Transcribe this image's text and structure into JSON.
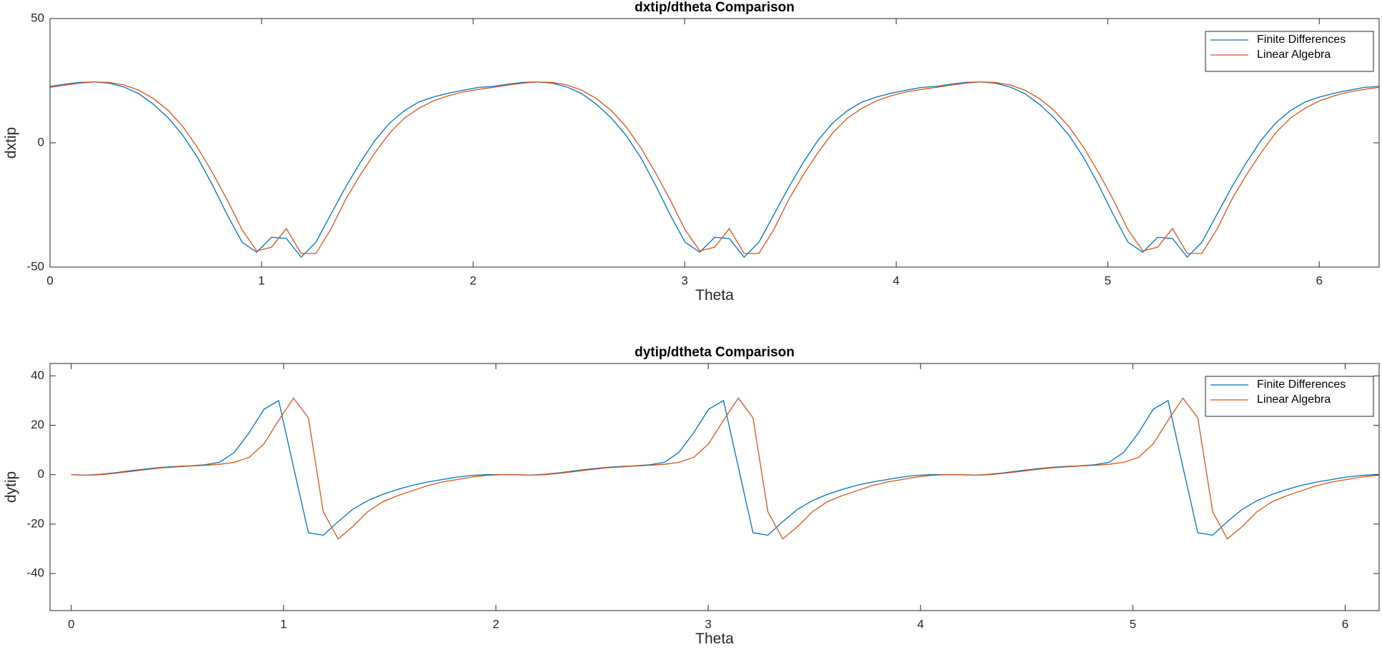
{
  "chart_data": [
    {
      "type": "line",
      "title": "dxtip/dtheta Comparison",
      "xlabel": "Theta",
      "ylabel": "dxtip",
      "x": [
        0,
        0.07,
        0.14,
        0.209,
        0.279,
        0.349,
        0.419,
        0.489,
        0.559,
        0.628,
        0.698,
        0.768,
        0.838,
        0.908,
        0.977,
        1.047,
        1.117,
        1.187,
        1.257,
        1.326,
        1.396,
        1.466,
        1.536,
        1.606,
        1.676,
        1.745,
        1.815,
        1.885,
        1.955,
        2.025,
        2.094,
        2.164,
        2.234,
        2.304,
        2.374,
        2.443,
        2.513,
        2.583,
        2.653,
        2.723,
        2.793,
        2.862,
        2.932,
        3.002,
        3.072,
        3.142,
        3.211,
        3.281,
        3.351,
        3.421,
        3.491,
        3.56,
        3.63,
        3.7,
        3.77,
        3.84,
        3.91,
        3.979,
        4.049,
        4.119,
        4.189,
        4.259,
        4.328,
        4.398,
        4.468,
        4.538,
        4.608,
        4.677,
        4.747,
        4.817,
        4.887,
        4.957,
        5.027,
        5.096,
        5.166,
        5.236,
        5.306,
        5.376,
        5.445,
        5.515,
        5.585,
        5.655,
        5.725,
        5.794,
        5.864,
        5.934,
        6.004,
        6.074,
        6.143,
        6.213,
        6.283
      ],
      "series": [
        {
          "name": "Finite Differences",
          "color": "#0072BD",
          "values": [
            22.7,
            23.6,
            24.3,
            24.5,
            24.0,
            22.5,
            19.8,
            15.5,
            10,
            3,
            -6,
            -17,
            -29,
            -40,
            -44,
            -38,
            -38.5,
            -46,
            -40,
            -29,
            -18,
            -8,
            1,
            8,
            13,
            16.5,
            18.5,
            20,
            21.2,
            22.3,
            22.7,
            23.6,
            24.3,
            24.5,
            24.0,
            22.5,
            19.8,
            15.5,
            10,
            3,
            -6,
            -17,
            -29,
            -40,
            -44,
            -38,
            -38.5,
            -46,
            -40,
            -29,
            -18,
            -8,
            1,
            8,
            13,
            16.5,
            18.5,
            20,
            21.2,
            22.3,
            22.7,
            23.6,
            24.3,
            24.5,
            24.0,
            22.5,
            19.8,
            15.5,
            10,
            3,
            -6,
            -17,
            -29,
            -40,
            -44,
            -38,
            -38.5,
            -46,
            -40,
            -29,
            -18,
            -8,
            1,
            8,
            13,
            16.5,
            18.5,
            20,
            21.2,
            22.3,
            22.7
          ]
        },
        {
          "name": "Linear Algebra",
          "color": "#D95319",
          "values": [
            22.3,
            23.2,
            24.0,
            24.5,
            24.3,
            23.3,
            21.2,
            17.8,
            13,
            6.5,
            -2,
            -12,
            -23,
            -35,
            -43.5,
            -42,
            -34.5,
            -44.5,
            -44.5,
            -35,
            -23,
            -13,
            -4,
            4,
            10,
            14,
            17,
            19,
            20.5,
            21.5,
            22.3,
            23.2,
            24.0,
            24.5,
            24.3,
            23.3,
            21.2,
            17.8,
            13,
            6.5,
            -2,
            -12,
            -23,
            -35,
            -43.5,
            -42,
            -34.5,
            -44.5,
            -44.5,
            -35,
            -23,
            -13,
            -4,
            4,
            10,
            14,
            17,
            19,
            20.5,
            21.5,
            22.3,
            23.2,
            24.0,
            24.5,
            24.3,
            23.3,
            21.2,
            17.8,
            13,
            6.5,
            -2,
            -12,
            -23,
            -35,
            -43.5,
            -42,
            -34.5,
            -44.5,
            -44.5,
            -35,
            -23,
            -13,
            -4,
            4,
            10,
            14,
            17,
            19,
            20.5,
            21.5,
            22.3
          ]
        }
      ],
      "xlim": [
        0,
        6.283
      ],
      "xticks": [
        0,
        1,
        2,
        3,
        4,
        5,
        6
      ],
      "ylim": [
        -50,
        50
      ],
      "yticks": [
        -50,
        0,
        50
      ],
      "legend": "northeast"
    },
    {
      "type": "line",
      "title": "dytip/dtheta Comparison",
      "xlabel": "Theta",
      "ylabel": "dytip",
      "x": [
        0,
        0.07,
        0.14,
        0.209,
        0.279,
        0.349,
        0.419,
        0.489,
        0.559,
        0.628,
        0.698,
        0.768,
        0.838,
        0.908,
        0.977,
        1.047,
        1.117,
        1.187,
        1.257,
        1.326,
        1.396,
        1.466,
        1.536,
        1.606,
        1.676,
        1.745,
        1.815,
        1.885,
        1.955,
        2.025,
        2.094,
        2.164,
        2.234,
        2.304,
        2.374,
        2.443,
        2.513,
        2.583,
        2.653,
        2.723,
        2.793,
        2.862,
        2.932,
        3.002,
        3.072,
        3.142,
        3.211,
        3.281,
        3.351,
        3.421,
        3.491,
        3.56,
        3.63,
        3.7,
        3.77,
        3.84,
        3.91,
        3.979,
        4.049,
        4.119,
        4.189,
        4.259,
        4.328,
        4.398,
        4.468,
        4.538,
        4.608,
        4.677,
        4.747,
        4.817,
        4.887,
        4.957,
        5.027,
        5.096,
        5.166,
        5.236,
        5.306,
        5.376,
        5.445,
        5.515,
        5.585,
        5.655,
        5.725,
        5.794,
        5.864,
        5.934,
        6.004,
        6.074,
        6.143,
        6.213,
        6.283
      ],
      "series": [
        {
          "name": "Finite Differences",
          "color": "#0072BD",
          "values": [
            0,
            -0.2,
            0.2,
            0.8,
            1.6,
            2.3,
            2.9,
            3.3,
            3.6,
            4,
            5,
            9,
            17,
            26.5,
            30,
            3,
            -23.5,
            -24.5,
            -19,
            -14,
            -10.5,
            -8,
            -6,
            -4.3,
            -3,
            -2,
            -1,
            -0.3,
            0,
            0,
            0,
            -0.2,
            0.2,
            0.8,
            1.6,
            2.3,
            2.9,
            3.3,
            3.6,
            4,
            5,
            9,
            17,
            26.5,
            30,
            3,
            -23.5,
            -24.5,
            -19,
            -14,
            -10.5,
            -8,
            -6,
            -4.3,
            -3,
            -2,
            -1,
            -0.3,
            0,
            0,
            0,
            -0.2,
            0.2,
            0.8,
            1.6,
            2.3,
            2.9,
            3.3,
            3.6,
            4,
            5,
            9,
            17,
            26.5,
            30,
            3,
            -23.5,
            -24.5,
            -19,
            -14,
            -10.5,
            -8,
            -6,
            -4.3,
            -3,
            -2,
            -1,
            -0.3,
            0,
            0,
            0
          ]
        },
        {
          "name": "Linear Algebra",
          "color": "#D95319",
          "values": [
            0,
            -0.2,
            0,
            0.6,
            1.3,
            2,
            2.7,
            3.1,
            3.5,
            3.8,
            4.2,
            5,
            7,
            12.5,
            22,
            31,
            23,
            -15,
            -26,
            -21,
            -15,
            -11,
            -8.5,
            -6.5,
            -4.5,
            -3,
            -2,
            -1,
            -0.3,
            0,
            0,
            -0.2,
            0,
            0.6,
            1.3,
            2,
            2.7,
            3.1,
            3.5,
            3.8,
            4.2,
            5,
            7,
            12.5,
            22,
            31,
            23,
            -15,
            -26,
            -21,
            -15,
            -11,
            -8.5,
            -6.5,
            -4.5,
            -3,
            -2,
            -1,
            -0.3,
            0,
            0,
            -0.2,
            0,
            0.6,
            1.3,
            2,
            2.7,
            3.1,
            3.5,
            3.8,
            4.2,
            5,
            7,
            12.5,
            22,
            31,
            23,
            -15,
            -26,
            -21,
            -15,
            -11,
            -8.5,
            -6.5,
            -4.5,
            -3,
            -2,
            -1,
            -0.3,
            0,
            0
          ]
        }
      ],
      "xlim": [
        -0.1,
        6.16
      ],
      "xticks": [
        0,
        1,
        2,
        3,
        4,
        5,
        6
      ],
      "ylim": [
        -55,
        45
      ],
      "yticks": [
        -40,
        -20,
        0,
        20,
        40
      ],
      "legend": "northeast"
    }
  ]
}
